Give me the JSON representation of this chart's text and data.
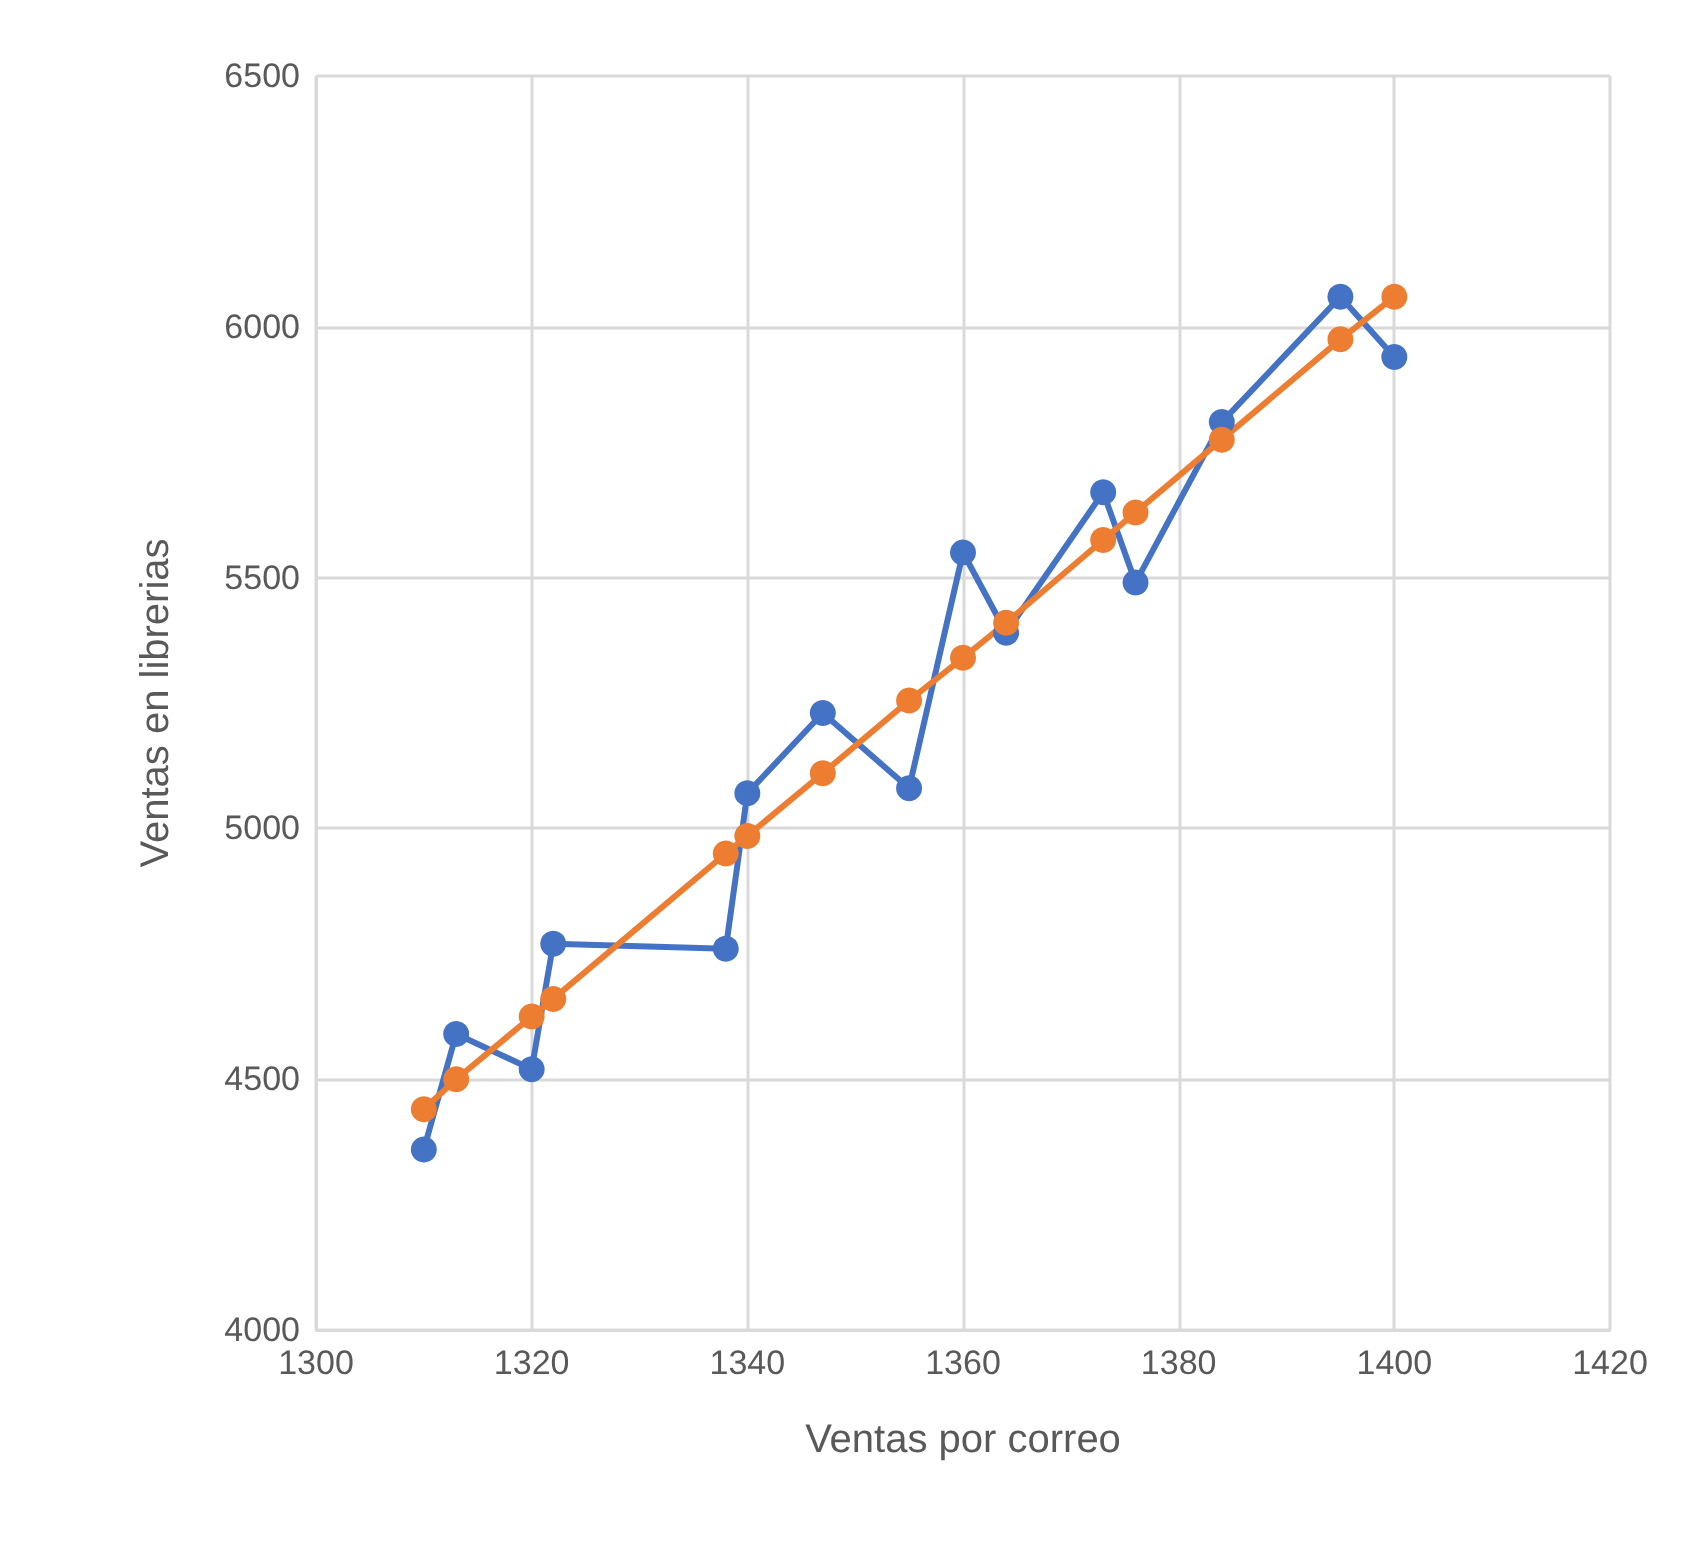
{
  "chart_data": {
    "type": "line",
    "xlabel": "Ventas por correo",
    "ylabel": "Ventas en librerias",
    "x": [
      1310,
      1313,
      1320,
      1322,
      1338,
      1340,
      1347,
      1355,
      1360,
      1364,
      1373,
      1376,
      1384,
      1395,
      1400
    ],
    "series": [
      {
        "color": "#4472c4",
        "values": [
          4360,
          4590,
          4520,
          4770,
          4760,
          5070,
          5230,
          5080,
          5550,
          5390,
          5670,
          5490,
          5810,
          6060,
          5940
        ]
      },
      {
        "color": "#ed7d31",
        "values": [
          4440,
          4500,
          4625,
          4660,
          4950,
          4985,
          5110,
          5255,
          5340,
          5410,
          5575,
          5630,
          5775,
          5975,
          6060
        ]
      }
    ],
    "xlim": [
      1300,
      1420
    ],
    "xticks": [
      1300,
      1320,
      1340,
      1360,
      1380,
      1400,
      1420
    ],
    "ylim": [
      4000,
      6500
    ],
    "yticks": [
      4000,
      4500,
      5000,
      5500,
      6000,
      6500
    ],
    "grid": true,
    "marker": "circle",
    "line_style": "solid"
  }
}
